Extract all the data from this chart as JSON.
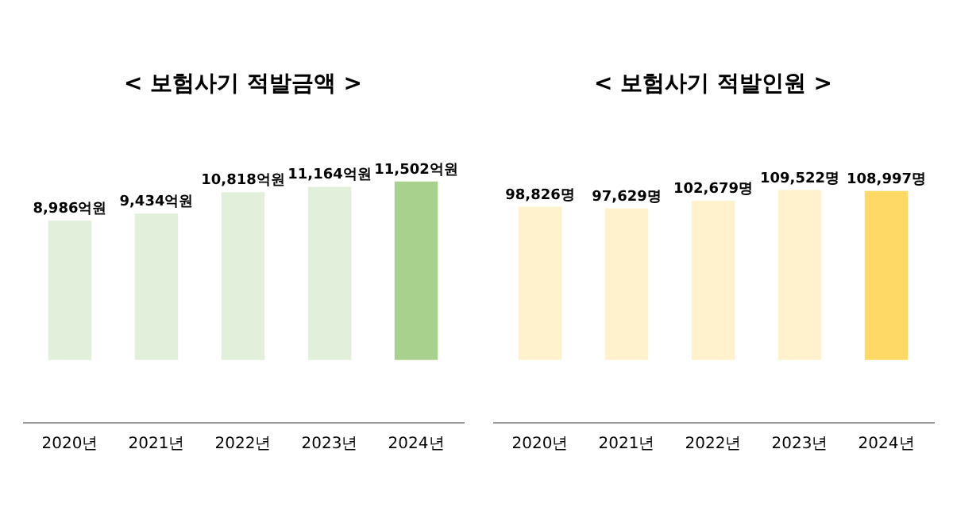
{
  "chart_data": [
    {
      "type": "bar",
      "title": "< 보험사기 적발금액 >",
      "categories": [
        "2020년",
        "2021년",
        "2022년",
        "2023년",
        "2024년"
      ],
      "values": [
        8986,
        9434,
        10818,
        11164,
        11502
      ],
      "colors": [
        "#e2efda",
        "#e2efda",
        "#e2efda",
        "#e2efda",
        "#a9d18e"
      ],
      "value_labels": [
        "8,986억원",
        "9,434억원",
        "10,818억원",
        "11,164억원",
        "11,502억원"
      ]
    },
    {
      "type": "bar",
      "title": "< 보험사기 적발인원 >",
      "categories": [
        "2020년",
        "2021년",
        "2022년",
        "2023년",
        "2024년"
      ],
      "values": [
        98826,
        97629,
        102679,
        109522,
        108997
      ],
      "colors": [
        "#fff2cc",
        "#fff2cc",
        "#fff2cc",
        "#fff2cc",
        "#ffd966"
      ],
      "value_labels": [
        "98,826명",
        "97,629명",
        "102,679명",
        "109,522명",
        "108,997명"
      ]
    }
  ]
}
